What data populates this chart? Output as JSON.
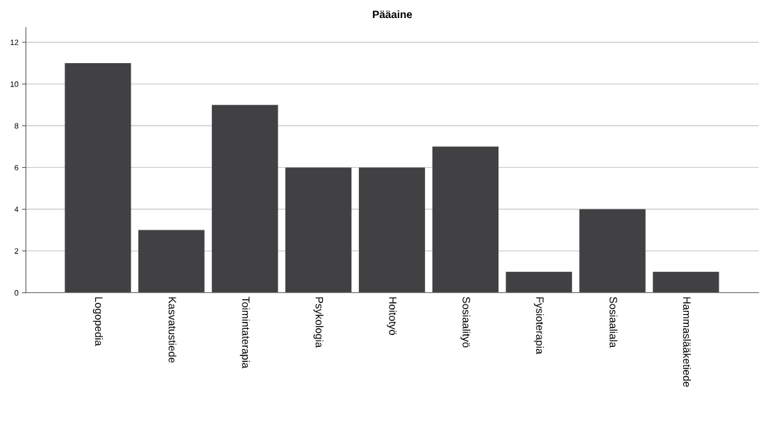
{
  "chart_data": {
    "type": "bar",
    "title": "Pääaine",
    "categories": [
      "Logopedia",
      "Kasvatustiede",
      "Toimintaterapia",
      "Psykologia",
      "Hoitotyö",
      "Sosiaalityö",
      "Fysioterapia",
      "Sosiaaliala",
      "Hammaslääketiede"
    ],
    "values": [
      11,
      3,
      9,
      6,
      6,
      7,
      1,
      4,
      1
    ],
    "color": "#414143",
    "ylim": [
      0,
      12.7
    ],
    "yticks": [
      0,
      2,
      4,
      6,
      8,
      10,
      12
    ],
    "grid": "y"
  }
}
